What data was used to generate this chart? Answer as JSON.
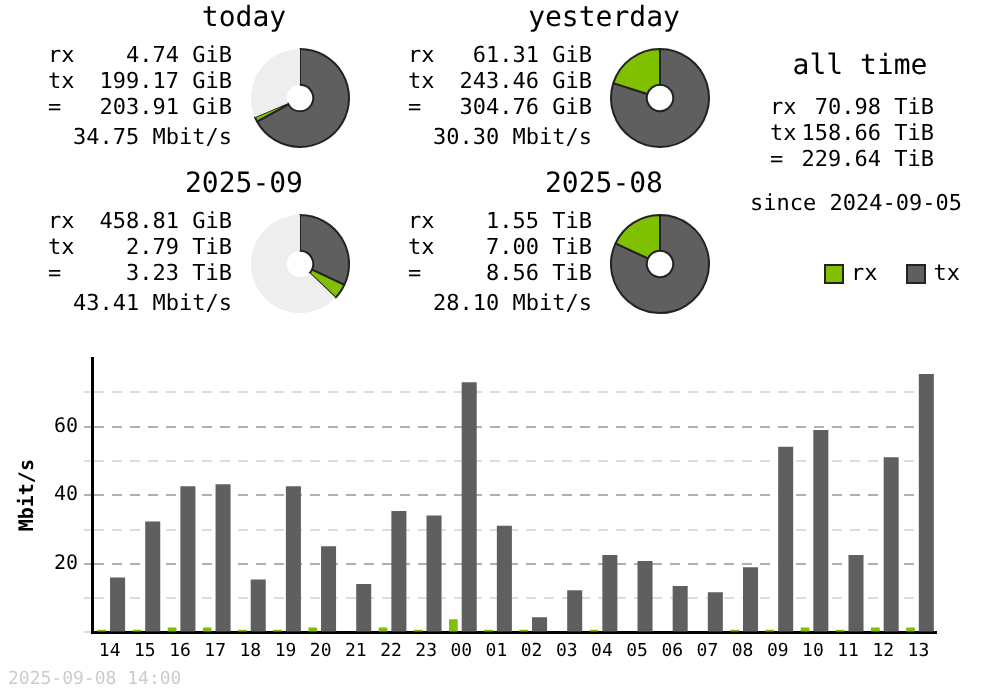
{
  "chart_data": [
    {
      "type": "donut",
      "title": "today",
      "categories": [
        null,
        null,
        null
      ],
      "values": [
        67,
        1.6,
        31.4
      ],
      "colors": [
        "#5f5f5f",
        "#7fc000",
        "#eeeeee"
      ],
      "annotations": [
        "rx 4.74 GiB",
        "tx 199.17 GiB",
        "= 203.91 GiB",
        "34.75 Mbit/s"
      ]
    },
    {
      "type": "donut",
      "title": "yesterday",
      "categories": [
        null,
        null
      ],
      "values": [
        79.9,
        20.1
      ],
      "colors": [
        "#5f5f5f",
        "#7fc000"
      ],
      "annotations": [
        "rx 61.31 GiB",
        "tx 243.46 GiB",
        "= 304.76 GiB",
        "30.30 Mbit/s"
      ]
    },
    {
      "type": "other",
      "title": "all time",
      "annotations": [
        "rx 70.98 TiB",
        "tx 158.66 TiB",
        "= 229.64 TiB",
        "since 2024-09-05"
      ]
    },
    {
      "type": "donut",
      "title": "2025-09",
      "categories": [
        null,
        null,
        null
      ],
      "values": [
        32,
        5.1,
        62.9
      ],
      "colors": [
        "#5f5f5f",
        "#7fc000",
        "#eeeeee"
      ],
      "annotations": [
        "rx 458.81 GiB",
        "tx 2.79 TiB",
        "= 3.23 TiB",
        "43.41 Mbit/s"
      ]
    },
    {
      "type": "donut",
      "title": "2025-08",
      "categories": [
        null,
        null
      ],
      "values": [
        81.9,
        18.1
      ],
      "colors": [
        "#5f5f5f",
        "#7fc000"
      ],
      "annotations": [
        "rx 1.55 TiB",
        "tx 7.00 TiB",
        "= 8.56 TiB",
        "28.10 Mbit/s"
      ]
    },
    {
      "type": "bar",
      "ylabel": "Mbit/s",
      "categories": [
        "14",
        "15",
        "16",
        "17",
        "18",
        "19",
        "20",
        "21",
        "22",
        "23",
        "00",
        "01",
        "02",
        "03",
        "04",
        "05",
        "06",
        "07",
        "08",
        "09",
        "10",
        "11",
        "12",
        "13"
      ],
      "series": [
        {
          "name": "rx",
          "color": "#7fc000",
          "values": [
            0.8,
            0.8,
            1.4,
            1.4,
            0.8,
            0.8,
            1.4,
            0,
            1.4,
            0.8,
            3.8,
            0.8,
            0.8,
            0,
            0.8,
            0,
            0,
            0,
            0.8,
            0.8,
            1.4,
            0.8,
            1.4,
            1.4
          ]
        },
        {
          "name": "tx",
          "color": "#5f5f5f",
          "values": [
            16.0,
            32.3,
            42.6,
            43.2,
            15.4,
            42.6,
            25.1,
            14.1,
            35.4,
            34.1,
            72.9,
            31.1,
            4.4,
            12.3,
            22.6,
            20.8,
            13.5,
            11.7,
            19.0,
            54.1,
            59.0,
            22.6,
            51.1,
            75.3
          ]
        }
      ],
      "ylim": [
        0,
        80
      ],
      "yticks": [
        {
          "value": 0,
          "label": null
        },
        {
          "value": 10,
          "label": null
        },
        20,
        {
          "value": 30,
          "label": null
        },
        40,
        {
          "value": 50,
          "label": null
        },
        60,
        {
          "value": 70,
          "label": null
        }
      ],
      "grid": "y",
      "legend": "top right",
      "annotations": [
        "2025-09-08 14:00"
      ]
    }
  ]
}
